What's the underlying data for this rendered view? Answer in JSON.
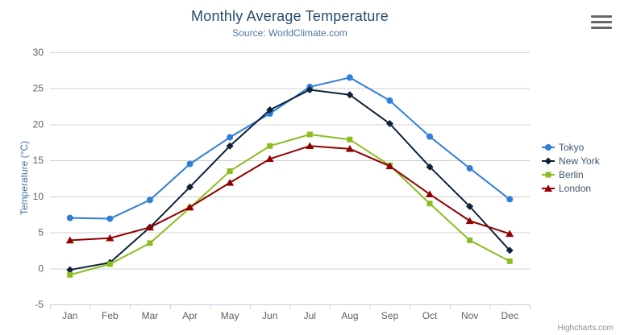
{
  "chart": {
    "title": "Monthly Average Temperature",
    "subtitle": "Source: WorldClimate.com",
    "credits": "Highcharts.com",
    "colors": {
      "title": "#274b6d",
      "subtitle": "#4d759e",
      "axis_title": "#4572a7",
      "tick_label": "#606060",
      "legend_label": "#3e576f",
      "grid_line": "#d0d0d0",
      "axis_line": "#c0d0e0",
      "credits": "#909090"
    }
  },
  "chart_data": {
    "type": "line",
    "title": "Monthly Average Temperature",
    "subtitle": "Source: WorldClimate.com",
    "categories": [
      "Jan",
      "Feb",
      "Mar",
      "Apr",
      "May",
      "Jun",
      "Jul",
      "Aug",
      "Sep",
      "Oct",
      "Nov",
      "Dec"
    ],
    "series": [
      {
        "name": "Tokyo",
        "color": "#2f7ed8",
        "marker": "circle",
        "values": [
          7.0,
          6.9,
          9.5,
          14.5,
          18.2,
          21.5,
          25.2,
          26.5,
          23.3,
          18.3,
          13.9,
          9.6
        ]
      },
      {
        "name": "New York",
        "color": "#0d233a",
        "marker": "diamond",
        "values": [
          -0.2,
          0.8,
          5.7,
          11.3,
          17.0,
          22.0,
          24.8,
          24.1,
          20.1,
          14.1,
          8.6,
          2.5
        ]
      },
      {
        "name": "Berlin",
        "color": "#8bbc21",
        "marker": "square",
        "values": [
          -0.9,
          0.6,
          3.5,
          8.4,
          13.5,
          17.0,
          18.6,
          17.9,
          14.3,
          9.0,
          3.9,
          1.0
        ]
      },
      {
        "name": "London",
        "color": "#910000",
        "marker": "triangle",
        "values": [
          3.9,
          4.2,
          5.7,
          8.5,
          11.9,
          15.2,
          17.0,
          16.6,
          14.2,
          10.3,
          6.6,
          4.8
        ]
      }
    ],
    "xlabel": "",
    "ylabel": "Temperature (°C)",
    "ylim": [
      -5,
      30
    ],
    "ytick_interval": 5,
    "yticks": [
      -5,
      0,
      5,
      10,
      15,
      20,
      25,
      30
    ],
    "grid": true,
    "legend_position": "right"
  }
}
